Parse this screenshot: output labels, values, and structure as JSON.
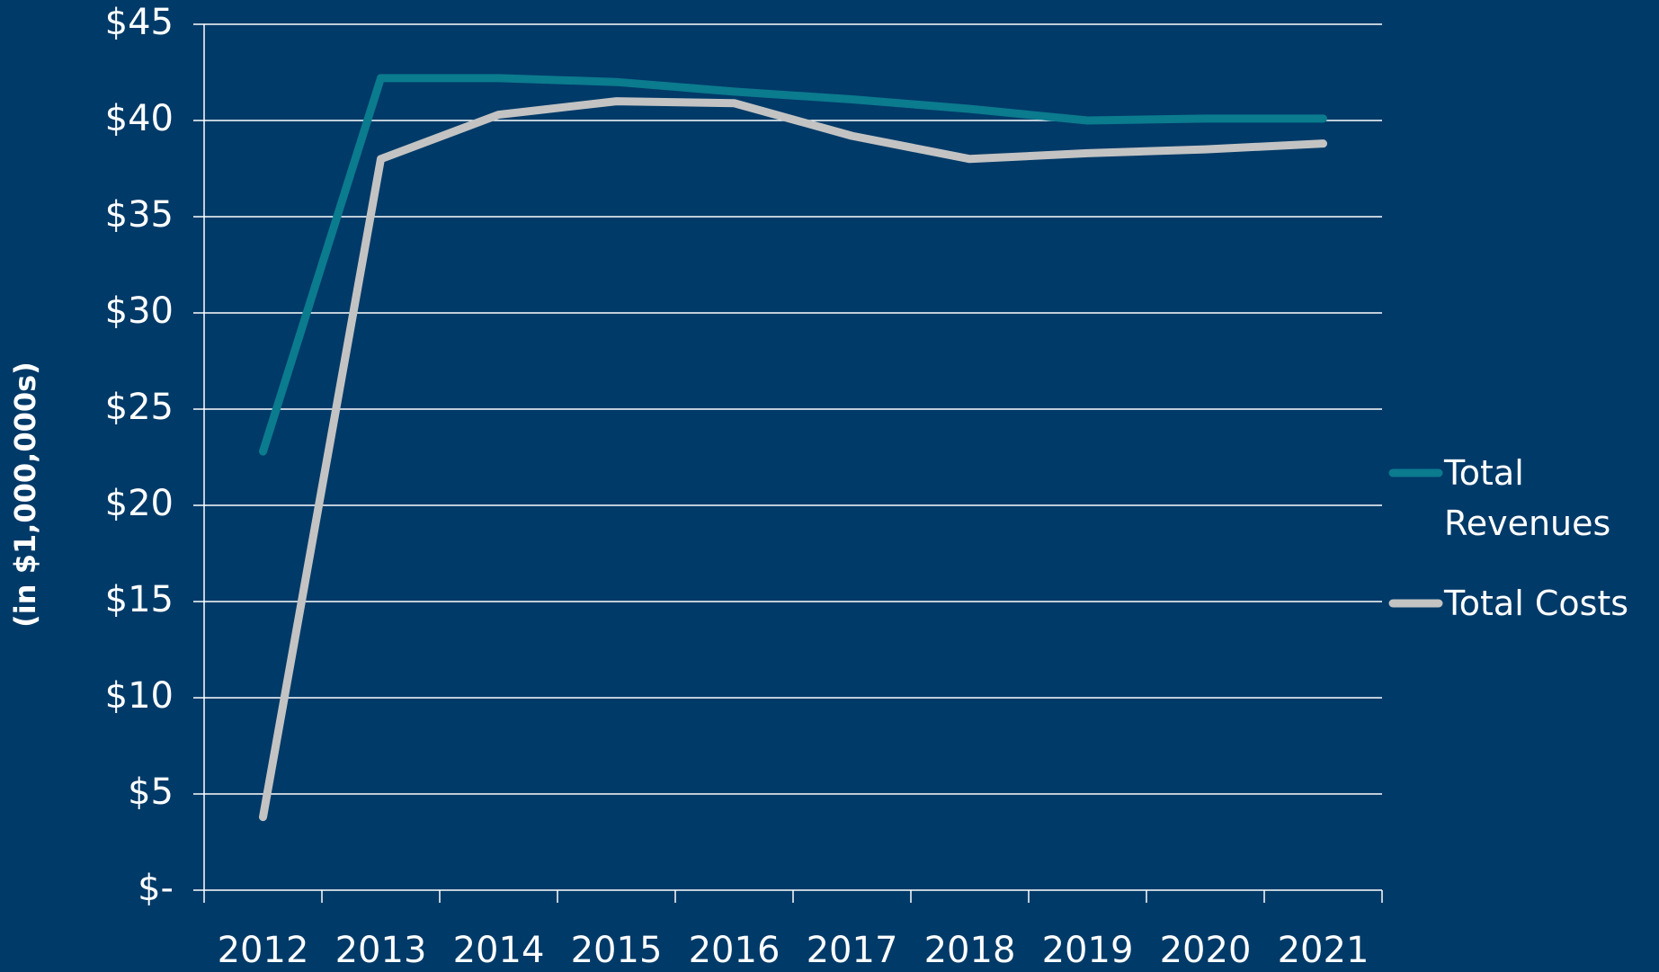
{
  "chart_data": {
    "type": "line",
    "y_axis_label": "(in $1,000,000s)",
    "categories": [
      "2012",
      "2013",
      "2014",
      "2015",
      "2016",
      "2017",
      "2018",
      "2019",
      "2020",
      "2021"
    ],
    "series": [
      {
        "name": "Total Revenues",
        "color": "#0b7b8e",
        "values": [
          22.8,
          42.2,
          42.2,
          42.0,
          41.5,
          41.1,
          40.6,
          40.0,
          40.1,
          40.1
        ]
      },
      {
        "name": "Total Costs",
        "color": "#c3c3c3",
        "values": [
          3.8,
          38.0,
          40.3,
          41.0,
          40.9,
          39.2,
          38.0,
          38.3,
          38.5,
          38.8
        ]
      }
    ],
    "ylim": [
      0,
      45
    ],
    "yticks": [
      {
        "value": 0,
        "label": "$-"
      },
      {
        "value": 5,
        "label": "$5"
      },
      {
        "value": 10,
        "label": "$10"
      },
      {
        "value": 15,
        "label": "$15"
      },
      {
        "value": 20,
        "label": "$20"
      },
      {
        "value": 25,
        "label": "$25"
      },
      {
        "value": 30,
        "label": "$30"
      },
      {
        "value": 35,
        "label": "$35"
      },
      {
        "value": 40,
        "label": "$40"
      },
      {
        "value": 45,
        "label": "$45"
      }
    ],
    "grid": true,
    "legend": "right",
    "background": "#003a68"
  }
}
